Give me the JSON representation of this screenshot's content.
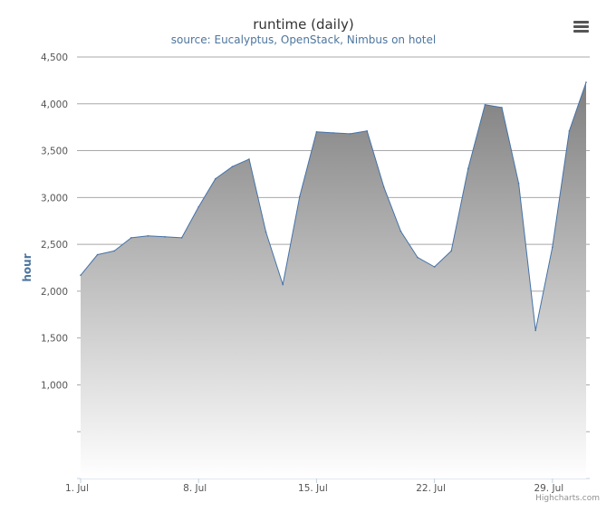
{
  "chart_data": {
    "type": "area",
    "title": "runtime (daily)",
    "subtitle": "source: Eucalyptus, OpenStack, Nimbus on hotel",
    "xlabel": "",
    "ylabel": "hour",
    "x": [
      "Jul 1",
      "Jul 2",
      "Jul 3",
      "Jul 4",
      "Jul 5",
      "Jul 6",
      "Jul 7",
      "Jul 8",
      "Jul 9",
      "Jul 10",
      "Jul 11",
      "Jul 12",
      "Jul 13",
      "Jul 14",
      "Jul 15",
      "Jul 16",
      "Jul 17",
      "Jul 18",
      "Jul 19",
      "Jul 20",
      "Jul 21",
      "Jul 22",
      "Jul 23",
      "Jul 24",
      "Jul 25",
      "Jul 26",
      "Jul 27",
      "Jul 28",
      "Jul 29",
      "Jul 30",
      "Jul 31"
    ],
    "values": [
      2170,
      2390,
      2430,
      2570,
      2590,
      2580,
      2570,
      2900,
      3200,
      3330,
      3410,
      2630,
      2070,
      3010,
      3700,
      3690,
      3680,
      3710,
      3110,
      2640,
      2360,
      2260,
      2430,
      3310,
      3990,
      3960,
      3150,
      1580,
      2470,
      3710,
      4230
    ],
    "ylim": [
      0,
      4500
    ],
    "y_ticks": [
      "1,000",
      "1,500",
      "2,000",
      "2,500",
      "3,000",
      "3,500",
      "4,000",
      "4,500"
    ],
    "x_ticks": [
      "1. Jul",
      "8. Jul",
      "15. Jul",
      "22. Jul",
      "29. Jul"
    ],
    "grid": true,
    "legend": "none",
    "colors": {
      "line": "#4572a7",
      "fill_top": "#7f7f7f",
      "fill_bottom": "#ffffff",
      "grid": "#a8a8a8"
    }
  },
  "credits": "Highcharts.com",
  "menu_icon": "hamburger-menu-icon"
}
